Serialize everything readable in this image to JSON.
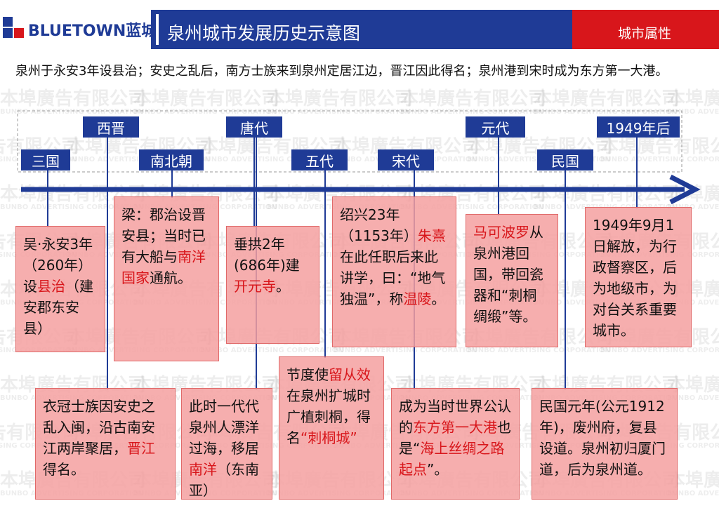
{
  "header": {
    "logo": "BLUETOWN蓝城",
    "title": "泉州城市发展历史示意图",
    "tag": "城市属性"
  },
  "intro": "泉州于永安3年设县治；安史之乱后，南方士族来到泉州定居江边，晋江因此得名；泉州港到宋时成为东方第一大港。",
  "watermark": [
    "本埠廣告有限公司",
    "BUNBO ADVERTISING CORPORATION"
  ],
  "periods": [
    {
      "label": "三国",
      "boxes": [
        {
          "segments": [
            {
              "text": "吴·永安3年（260年）设",
              "highlight": false
            },
            {
              "text": "县治",
              "highlight": true
            },
            {
              "text": "（建安郡东安县）",
              "highlight": false
            }
          ]
        }
      ]
    },
    {
      "label": "西晋",
      "boxes": [
        {
          "segments": [
            {
              "text": "衣冠士族因安史之乱入闽，沿古南安江两岸聚居，",
              "highlight": false
            },
            {
              "text": "晋江",
              "highlight": true
            },
            {
              "text": "得名。",
              "highlight": false
            }
          ]
        }
      ]
    },
    {
      "label": "南北朝",
      "boxes": [
        {
          "segments": [
            {
              "text": "梁：郡治设晋安县；当时已有大船与",
              "highlight": false
            },
            {
              "text": "南洋国家",
              "highlight": true
            },
            {
              "text": "通航。",
              "highlight": false
            }
          ]
        }
      ]
    },
    {
      "label": "唐代",
      "boxes": [
        {
          "segments": [
            {
              "text": "垂拱2年(686年)建",
              "highlight": false
            },
            {
              "text": "开元寺",
              "highlight": true
            },
            {
              "text": "。",
              "highlight": false
            }
          ]
        },
        {
          "segments": [
            {
              "text": "此时一代代泉州人漂洋过海，移居",
              "highlight": false
            },
            {
              "text": "南洋",
              "highlight": true
            },
            {
              "text": "（东南亚）",
              "highlight": false
            }
          ]
        }
      ]
    },
    {
      "label": "五代",
      "boxes": [
        {
          "segments": [
            {
              "text": "节度使",
              "highlight": false
            },
            {
              "text": "留从效",
              "highlight": true
            },
            {
              "text": "在泉州扩城时广植刺桐，得名",
              "highlight": false
            },
            {
              "text": "“刺桐城”",
              "highlight": true
            }
          ]
        }
      ]
    },
    {
      "label": "宋代",
      "boxes": [
        {
          "segments": [
            {
              "text": "绍兴23年（1153年）",
              "highlight": false
            },
            {
              "text": "朱熹",
              "highlight": true
            },
            {
              "text": "在此任职后来此讲学，曰：“地气独温”，称",
              "highlight": false
            },
            {
              "text": "温陵",
              "highlight": true
            },
            {
              "text": "。",
              "highlight": false
            }
          ]
        },
        {
          "segments": [
            {
              "text": "成为当时世界公认的",
              "highlight": false
            },
            {
              "text": "东方第一大港",
              "highlight": true
            },
            {
              "text": "也是“",
              "highlight": false
            },
            {
              "text": "海上丝绸之路起点",
              "highlight": true
            },
            {
              "text": "”。",
              "highlight": false
            }
          ]
        }
      ]
    },
    {
      "label": "元代",
      "boxes": [
        {
          "segments": [
            {
              "text": "马可波罗",
              "highlight": true
            },
            {
              "text": "从泉州港回国，带回瓷器和“刺桐绸缎”等。",
              "highlight": false
            }
          ]
        }
      ]
    },
    {
      "label": "民国",
      "boxes": [
        {
          "segments": [
            {
              "text": "民国元年(公元1912年)，废州府，复县设道。泉州初归厦门道，后为泉州道。",
              "highlight": false
            }
          ]
        }
      ]
    },
    {
      "label": "1949年后",
      "boxes": [
        {
          "segments": [
            {
              "text": "1949年9月1日解放，为行政督察区，后为地级市，为对台关系重要城市。",
              "highlight": false
            }
          ]
        }
      ]
    }
  ]
}
